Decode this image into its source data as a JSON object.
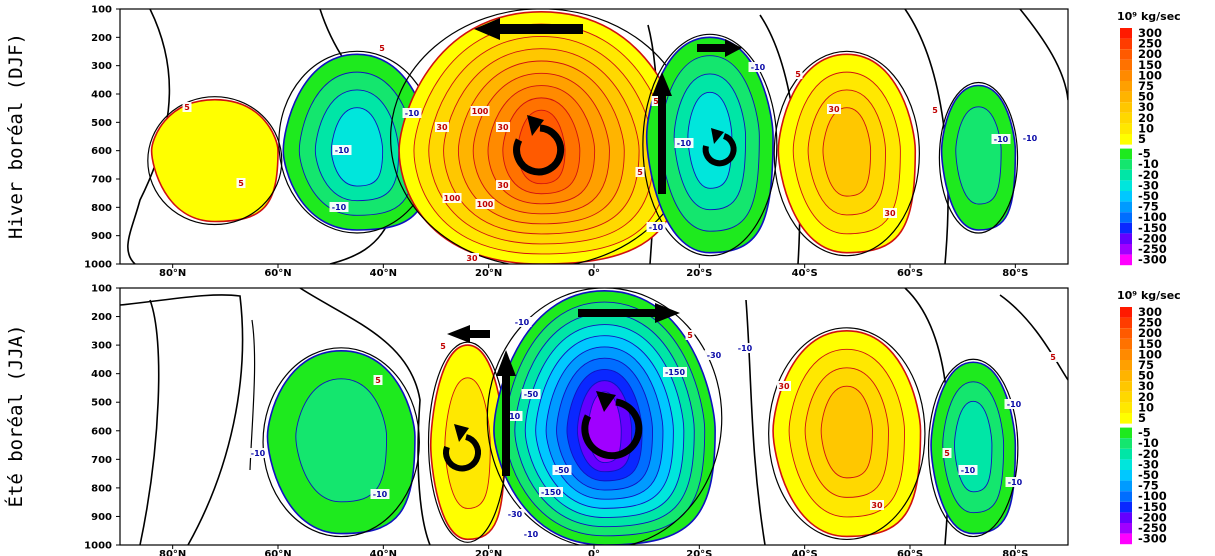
{
  "chart_data": [
    {
      "type": "heatmap",
      "row_label": "Hiver boréal (DJF)",
      "x_ticks": [
        "80°N",
        "60°N",
        "40°N",
        "20°N",
        "0°",
        "20°S",
        "40°S",
        "60°S",
        "80°S"
      ],
      "y_ticks": [
        "100",
        "200",
        "300",
        "400",
        "500",
        "600",
        "700",
        "800",
        "900",
        "1000"
      ],
      "xlim": [
        "90°N",
        "90°S"
      ],
      "ylim": [
        1000,
        100
      ],
      "cells": [
        {
          "name": "north-polar-positive",
          "sign": "positive",
          "peak": 5,
          "center_lat": 72,
          "center_p": 600
        },
        {
          "name": "ferrel-north-negative",
          "sign": "negative",
          "peak": -30,
          "center_lat": 45,
          "center_p": 600
        },
        {
          "name": "hadley-winter-positive",
          "sign": "positive",
          "peak": 200,
          "center_lat": 10,
          "center_p": 600
        },
        {
          "name": "hadley-summer-negative",
          "sign": "negative",
          "peak": -30,
          "center_lat": -22,
          "center_p": 550
        },
        {
          "name": "ferrel-south-positive",
          "sign": "positive",
          "peak": 30,
          "center_lat": -48,
          "center_p": 600
        },
        {
          "name": "south-polar-negative",
          "sign": "negative",
          "peak": -10,
          "center_lat": -73,
          "center_p": 600
        }
      ],
      "contour_labels": [
        "5",
        "5",
        "5",
        "-10",
        "-10",
        "-10",
        "30",
        "30",
        "100",
        "100",
        "100",
        "30",
        "30",
        "5",
        "5",
        "-10",
        "-10",
        "-10",
        "5",
        "30",
        "30",
        "5",
        "-10",
        "-10"
      ]
    },
    {
      "type": "heatmap",
      "row_label": "Été boréal (JJA)",
      "x_ticks": [
        "80°N",
        "60°N",
        "40°N",
        "20°N",
        "0°",
        "20°S",
        "40°S",
        "60°S",
        "80°S"
      ],
      "y_ticks": [
        "100",
        "200",
        "300",
        "400",
        "500",
        "600",
        "700",
        "800",
        "900",
        "1000"
      ],
      "xlim": [
        "90°N",
        "90°S"
      ],
      "ylim": [
        1000,
        100
      ],
      "cells": [
        {
          "name": "ferrel-north-negative",
          "sign": "negative",
          "peak": -10,
          "center_lat": 48,
          "center_p": 620
        },
        {
          "name": "hadley-summer-positive",
          "sign": "positive",
          "peak": 10,
          "center_lat": 24,
          "center_p": 650
        },
        {
          "name": "hadley-winter-negative",
          "sign": "negative",
          "peak": -250,
          "center_lat": -2,
          "center_p": 600
        },
        {
          "name": "ferrel-south-positive",
          "sign": "positive",
          "peak": 30,
          "center_lat": -48,
          "center_p": 600
        },
        {
          "name": "south-polar-negative",
          "sign": "negative",
          "peak": -20,
          "center_lat": -72,
          "center_p": 650
        }
      ],
      "contour_labels": [
        "5",
        "-10",
        "-10",
        "-10",
        "5",
        "-10",
        "-50",
        "-150",
        "-30",
        "-10",
        "-150",
        "-50",
        "-30",
        "-10",
        "5",
        "30",
        "30",
        "5",
        "-10",
        "-10",
        "5",
        "-10"
      ]
    }
  ],
  "colorbar": {
    "title": "10⁹ kg/sec",
    "positive_levels": [
      "300",
      "250",
      "200",
      "150",
      "100",
      "75",
      "50",
      "30",
      "20",
      "10",
      "5"
    ],
    "positive_colors": [
      "#ff1a00",
      "#ff3c00",
      "#ff5a00",
      "#ff7200",
      "#ff8a00",
      "#ffa000",
      "#ffb400",
      "#ffc700",
      "#ffd800",
      "#ffe800",
      "#ffff00"
    ],
    "negative_levels": [
      "-5",
      "-10",
      "-20",
      "-30",
      "-50",
      "-75",
      "-100",
      "-150",
      "-200",
      "-250",
      "-300"
    ],
    "negative_colors": [
      "#1eea1e",
      "#14e66e",
      "#00e6a6",
      "#00e6dc",
      "#00c8ff",
      "#009bff",
      "#006eff",
      "#0a28ff",
      "#6400ff",
      "#a000ff",
      "#ff00ff"
    ]
  },
  "arrows": [
    {
      "panel": 0,
      "name": "upper-poleward-arrow-north",
      "dir": "west"
    },
    {
      "panel": 0,
      "name": "upper-arrow-south",
      "dir": "east"
    },
    {
      "panel": 0,
      "name": "ascent-arrow",
      "dir": "up"
    },
    {
      "panel": 1,
      "name": "upper-arrow-north",
      "dir": "west"
    },
    {
      "panel": 1,
      "name": "upper-arrow-south",
      "dir": "east"
    },
    {
      "panel": 1,
      "name": "ascent-arrow",
      "dir": "up"
    }
  ]
}
